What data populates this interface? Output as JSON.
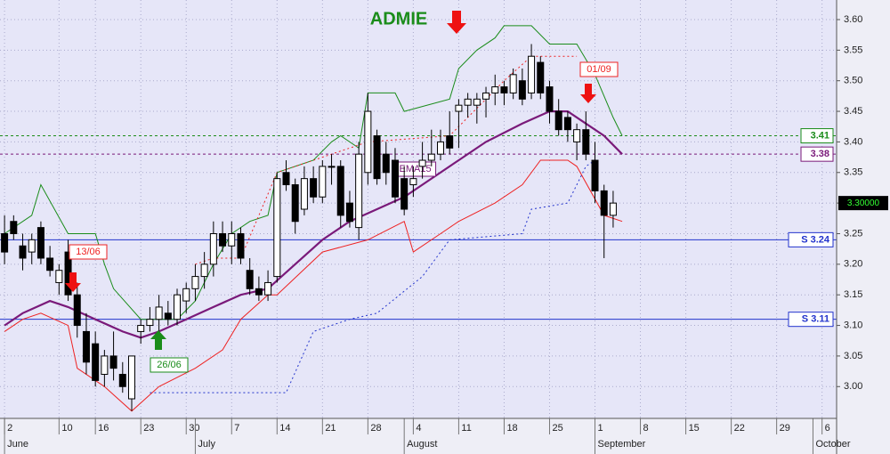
{
  "chart_data": {
    "type": "candlestick",
    "title": "ADMIE",
    "xlim": [
      -0.5,
      91.6
    ],
    "ylim": [
      2.948,
      3.632
    ],
    "xticks": [
      {
        "value": 0,
        "label": "2"
      },
      {
        "value": 6,
        "label": "10"
      },
      {
        "value": 10,
        "label": "16"
      },
      {
        "value": 15,
        "label": "23"
      },
      {
        "value": 20,
        "label": "30"
      },
      {
        "value": 25,
        "label": "7"
      },
      {
        "value": 30,
        "label": "14"
      },
      {
        "value": 35,
        "label": "21"
      },
      {
        "value": 40,
        "label": "28"
      },
      {
        "value": 45,
        "label": "4"
      },
      {
        "value": 50,
        "label": "11"
      },
      {
        "value": 55,
        "label": "18"
      },
      {
        "value": 60,
        "label": "25"
      },
      {
        "value": 65,
        "label": "1"
      },
      {
        "value": 70,
        "label": "8"
      },
      {
        "value": 75,
        "label": "15"
      },
      {
        "value": 80,
        "label": "22"
      },
      {
        "value": 85,
        "label": "29"
      },
      {
        "value": 90,
        "label": "6"
      }
    ],
    "months": [
      {
        "value": 0,
        "label": "June"
      },
      {
        "value": 21,
        "label": "July"
      },
      {
        "value": 44,
        "label": "August"
      },
      {
        "value": 65,
        "label": "September"
      },
      {
        "value": 89,
        "label": "October"
      }
    ],
    "yticks": [
      {
        "value": 3.0,
        "label": "3.00"
      },
      3.05,
      {
        "value": 3.1,
        "label": "3.10"
      },
      3.15,
      {
        "value": 3.2,
        "label": "3.20"
      },
      3.25,
      {
        "value": 3.3,
        "label": "3.30"
      },
      3.35,
      {
        "value": 3.4,
        "label": "3.40"
      },
      3.45,
      {
        "value": 3.5,
        "label": "3.50"
      },
      3.55,
      {
        "value": 3.6,
        "label": "3.60"
      }
    ],
    "grid": true,
    "candles": {
      "open": [
        3.25,
        3.27,
        3.23,
        3.22,
        3.26,
        3.21,
        3.17,
        3.22,
        3.15,
        3.09,
        3.07,
        3.02,
        3.05,
        3.02,
        2.98,
        3.09,
        3.1,
        3.11,
        3.12,
        3.11,
        3.14,
        3.16,
        3.18,
        3.2,
        3.25,
        3.23,
        3.25,
        3.19,
        3.16,
        3.15,
        3.18,
        3.35,
        3.33,
        3.29,
        3.34,
        3.31,
        3.36,
        3.36,
        3.3,
        3.26,
        3.35,
        3.41,
        3.38,
        3.37,
        3.34,
        3.33,
        3.36,
        3.37,
        3.38,
        3.41,
        3.45,
        3.46,
        3.46,
        3.47,
        3.48,
        3.49,
        3.48,
        3.5,
        3.48,
        3.53,
        3.49,
        3.45,
        3.44,
        3.4,
        3.42,
        3.37,
        3.32,
        3.28
      ],
      "high": [
        3.28,
        3.28,
        3.25,
        3.25,
        3.27,
        3.23,
        3.2,
        3.24,
        3.17,
        3.12,
        3.09,
        3.06,
        3.09,
        3.04,
        3.05,
        3.11,
        3.13,
        3.15,
        3.14,
        3.16,
        3.17,
        3.2,
        3.22,
        3.27,
        3.27,
        3.27,
        3.26,
        3.21,
        3.18,
        3.19,
        3.35,
        3.37,
        3.34,
        3.36,
        3.36,
        3.37,
        3.38,
        3.37,
        3.32,
        3.4,
        3.48,
        3.42,
        3.4,
        3.39,
        3.36,
        3.36,
        3.4,
        3.42,
        3.42,
        3.45,
        3.47,
        3.48,
        3.48,
        3.49,
        3.51,
        3.5,
        3.52,
        3.52,
        3.56,
        3.54,
        3.5,
        3.47,
        3.45,
        3.43,
        3.45,
        3.4,
        3.33,
        3.32
      ],
      "low": [
        3.2,
        3.24,
        3.19,
        3.2,
        3.2,
        3.18,
        3.15,
        3.14,
        3.08,
        3.02,
        3.0,
        3.0,
        3.01,
        2.99,
        2.96,
        3.07,
        3.09,
        3.09,
        3.1,
        3.1,
        3.12,
        3.14,
        3.16,
        3.18,
        3.22,
        3.2,
        3.2,
        3.15,
        3.14,
        3.14,
        3.17,
        3.32,
        3.25,
        3.28,
        3.3,
        3.3,
        3.33,
        3.26,
        3.26,
        3.24,
        3.33,
        3.33,
        3.33,
        3.3,
        3.28,
        3.31,
        3.34,
        3.36,
        3.37,
        3.38,
        3.39,
        3.44,
        3.43,
        3.44,
        3.46,
        3.46,
        3.47,
        3.46,
        3.47,
        3.47,
        3.43,
        3.41,
        3.4,
        3.37,
        3.37,
        3.3,
        3.21,
        3.26
      ],
      "close": [
        3.22,
        3.25,
        3.21,
        3.24,
        3.21,
        3.19,
        3.19,
        3.15,
        3.1,
        3.04,
        3.01,
        3.05,
        3.03,
        3.0,
        3.05,
        3.1,
        3.11,
        3.13,
        3.11,
        3.15,
        3.16,
        3.18,
        3.2,
        3.25,
        3.23,
        3.25,
        3.21,
        3.16,
        3.15,
        3.17,
        3.34,
        3.33,
        3.27,
        3.34,
        3.31,
        3.36,
        3.36,
        3.28,
        3.27,
        3.38,
        3.45,
        3.34,
        3.35,
        3.31,
        3.29,
        3.34,
        3.37,
        3.38,
        3.4,
        3.39,
        3.46,
        3.47,
        3.47,
        3.48,
        3.49,
        3.48,
        3.51,
        3.47,
        3.54,
        3.48,
        3.45,
        3.42,
        3.42,
        3.42,
        3.38,
        3.32,
        3.28,
        3.3
      ]
    },
    "lines": [
      {
        "color": "#1a8c1a",
        "style": "solid",
        "width": 1,
        "x": [
          0,
          3,
          4,
          7,
          10,
          11,
          12,
          15,
          19,
          21,
          23,
          25,
          27,
          29,
          30,
          34,
          36,
          37,
          39,
          40,
          43,
          44,
          49,
          50,
          52,
          54,
          55,
          58,
          60,
          63,
          65,
          67,
          68
        ],
        "values": [
          3.25,
          3.28,
          3.33,
          3.25,
          3.25,
          3.2,
          3.16,
          3.11,
          3.11,
          3.14,
          3.2,
          3.25,
          3.27,
          3.28,
          3.35,
          3.37,
          3.4,
          3.41,
          3.39,
          3.48,
          3.48,
          3.45,
          3.47,
          3.52,
          3.55,
          3.57,
          3.59,
          3.59,
          3.56,
          3.56,
          3.51,
          3.44,
          3.41
        ]
      },
      {
        "color": "#ee2222",
        "style": "solid",
        "width": 1,
        "x": [
          0,
          2,
          4,
          7,
          8,
          11,
          14,
          17,
          21,
          24,
          26,
          29,
          30,
          35,
          40,
          44,
          45,
          48,
          50,
          54,
          57,
          59,
          62,
          63,
          66,
          68
        ],
        "values": [
          3.09,
          3.11,
          3.12,
          3.1,
          3.03,
          3.0,
          2.96,
          3.0,
          3.03,
          3.06,
          3.11,
          3.15,
          3.15,
          3.22,
          3.24,
          3.27,
          3.22,
          3.25,
          3.27,
          3.3,
          3.33,
          3.37,
          3.37,
          3.36,
          3.28,
          3.27
        ]
      },
      {
        "color": "#2233cc",
        "style": "dotted",
        "width": 1,
        "x": [
          16,
          31,
          34,
          38,
          41,
          46,
          49,
          57,
          58,
          62,
          64,
          65
        ],
        "values": [
          2.99,
          2.99,
          3.09,
          3.11,
          3.12,
          3.18,
          3.24,
          3.25,
          3.29,
          3.3,
          3.36,
          3.37
        ]
      },
      {
        "color": "#ee2222",
        "style": "dotted",
        "width": 1,
        "x": [
          21,
          23,
          26,
          30,
          40,
          49,
          55,
          58,
          63
        ],
        "values": [
          3.2,
          3.21,
          3.21,
          3.35,
          3.4,
          3.41,
          3.5,
          3.54,
          3.54
        ]
      },
      {
        "name": "EMA15",
        "color": "#7a1a7a",
        "style": "solid",
        "width": 2.2,
        "x": [
          0,
          2,
          5,
          7,
          10,
          13,
          15,
          17,
          20,
          23,
          26,
          29,
          32,
          35,
          38,
          41,
          44,
          47,
          50,
          53,
          57,
          60,
          62,
          64,
          66,
          68
        ],
        "values": [
          3.1,
          3.12,
          3.14,
          3.13,
          3.11,
          3.09,
          3.08,
          3.09,
          3.11,
          3.13,
          3.15,
          3.16,
          3.2,
          3.24,
          3.27,
          3.29,
          3.31,
          3.34,
          3.37,
          3.4,
          3.43,
          3.45,
          3.45,
          3.43,
          3.41,
          3.38
        ]
      }
    ],
    "levels": [
      {
        "value": 3.41,
        "label": "3.41",
        "color": "#1a8c1a",
        "style": "dashed"
      },
      {
        "value": 3.38,
        "label": "3.38",
        "color": "#7a1a7a",
        "style": "dashed"
      },
      {
        "value": 3.24,
        "label": "S 3.24",
        "color": "#2233cc",
        "style": "solid"
      },
      {
        "value": 3.11,
        "label": "S 3.11",
        "color": "#2233cc",
        "style": "solid"
      }
    ],
    "last_price": {
      "value": 3.3,
      "label": "3.30000"
    },
    "annotations": [
      "13/06",
      "26/06",
      "01/09"
    ]
  }
}
